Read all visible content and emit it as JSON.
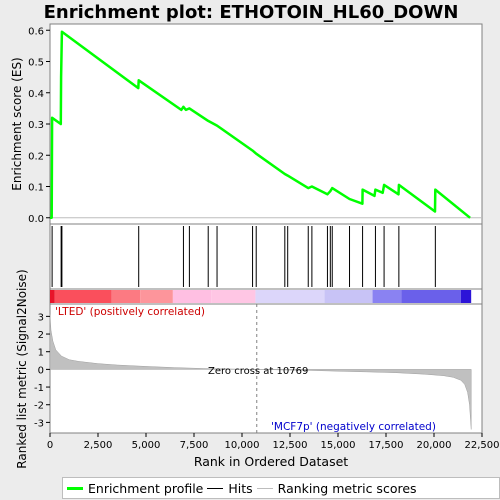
{
  "chart_data": {
    "type": "line",
    "title": "Enrichment plot: ETHOTOIN_HL60_DOWN",
    "xlabel": "Rank in Ordered Dataset",
    "top_ylabel": "Enrichment score (ES)",
    "bottom_ylabel": "Ranked list metric (Signal2Noise)",
    "n_genes": 21936,
    "xlim": [
      0,
      22500
    ],
    "xticks": [
      0,
      2500,
      5000,
      7500,
      10000,
      12500,
      15000,
      17500,
      20000,
      22500
    ],
    "xtick_labels": [
      "0",
      "2,500",
      "5,000",
      "7,500",
      "10,000",
      "12,500",
      "15,000",
      "17,500",
      "20,000",
      "22,500"
    ],
    "es_ylim": [
      -0.02,
      0.62
    ],
    "es_yticks": [
      0.0,
      0.1,
      0.2,
      0.3,
      0.4,
      0.5,
      0.6
    ],
    "es_ytick_labels": [
      "0.0",
      "0.1",
      "0.2",
      "0.3",
      "0.4",
      "0.5",
      "0.6"
    ],
    "metric_ylim": [
      -3.6,
      3.7
    ],
    "metric_yticks": [
      -3,
      -2,
      -1,
      0,
      1,
      2,
      3
    ],
    "metric_ytick_labels": [
      "-3",
      "-2",
      "-1",
      "0",
      "1",
      "2",
      "3"
    ],
    "series": [
      {
        "name": "Enrichment profile",
        "color": "#00ff00",
        "x": [
          0,
          1,
          90,
          110,
          560,
          580,
          620,
          4600,
          4620,
          6840,
          6950,
          7080,
          7260,
          8240,
          8700,
          10550,
          10740,
          12230,
          12380,
          13450,
          13640,
          14450,
          14600,
          14700,
          15600,
          16270,
          16280,
          16900,
          16950,
          17330,
          17400,
          18150,
          18170,
          20050,
          20070,
          21880
        ],
        "y": [
          0.0,
          0.0,
          0.0,
          0.32,
          0.3,
          0.45,
          0.595,
          0.415,
          0.44,
          0.345,
          0.355,
          0.345,
          0.35,
          0.31,
          0.295,
          0.215,
          0.205,
          0.14,
          0.135,
          0.095,
          0.1,
          0.075,
          0.085,
          0.095,
          0.06,
          0.045,
          0.09,
          0.07,
          0.09,
          0.08,
          0.105,
          0.075,
          0.105,
          0.02,
          0.09,
          0.0
        ]
      }
    ],
    "hits": [
      110,
      580,
      620,
      4620,
      6950,
      7260,
      8240,
      8700,
      10550,
      10740,
      12230,
      12380,
      13450,
      13640,
      14450,
      14600,
      14700,
      15600,
      16280,
      16950,
      17400,
      18170,
      20070
    ],
    "ranked_metric": {
      "name": "Ranking metric scores",
      "color": "#c0c0c0",
      "x": [
        0,
        50,
        150,
        300,
        600,
        1000,
        1500,
        2500,
        3500,
        5000,
        6500,
        8000,
        9500,
        10769,
        12000,
        13500,
        15000,
        16500,
        18000,
        19500,
        20500,
        21000,
        21400,
        21600,
        21750,
        21850,
        21936
      ],
      "y": [
        3.1,
        2.2,
        1.6,
        1.1,
        0.75,
        0.55,
        0.45,
        0.33,
        0.25,
        0.17,
        0.1,
        0.05,
        0.02,
        0.0,
        -0.03,
        -0.06,
        -0.1,
        -0.14,
        -0.19,
        -0.27,
        -0.36,
        -0.45,
        -0.62,
        -0.85,
        -1.3,
        -2.0,
        -3.4
      ]
    },
    "zero_cross_rank": 10769,
    "zero_cross_text": "Zero cross at 10769",
    "pos_label": "'LTED' (positively correlated)",
    "neg_label": "'MCF7p' (negatively correlated)",
    "heatmap_colors": [
      {
        "from": 0,
        "to": 250,
        "color": "#e8142a"
      },
      {
        "from": 250,
        "to": 3200,
        "color": "#fa4f5c"
      },
      {
        "from": 3200,
        "to": 4700,
        "color": "#fc7a82"
      },
      {
        "from": 4700,
        "to": 6400,
        "color": "#fd959b"
      },
      {
        "from": 6400,
        "to": 8400,
        "color": "#ffbfe2"
      },
      {
        "from": 8400,
        "to": 10700,
        "color": "#ffc6e4"
      },
      {
        "from": 10700,
        "to": 14300,
        "color": "#dcd6fa"
      },
      {
        "from": 14300,
        "to": 16800,
        "color": "#c8c3f6"
      },
      {
        "from": 16800,
        "to": 18300,
        "color": "#8a82f2"
      },
      {
        "from": 18300,
        "to": 21400,
        "color": "#6a60ea"
      },
      {
        "from": 21400,
        "to": 21936,
        "color": "#2c14d8"
      }
    ]
  },
  "legend": {
    "items": [
      {
        "label": "Enrichment profile",
        "icon": "green-line"
      },
      {
        "label": "Hits",
        "icon": "black-line"
      },
      {
        "label": "Ranking metric scores",
        "icon": "gray-line"
      }
    ]
  }
}
